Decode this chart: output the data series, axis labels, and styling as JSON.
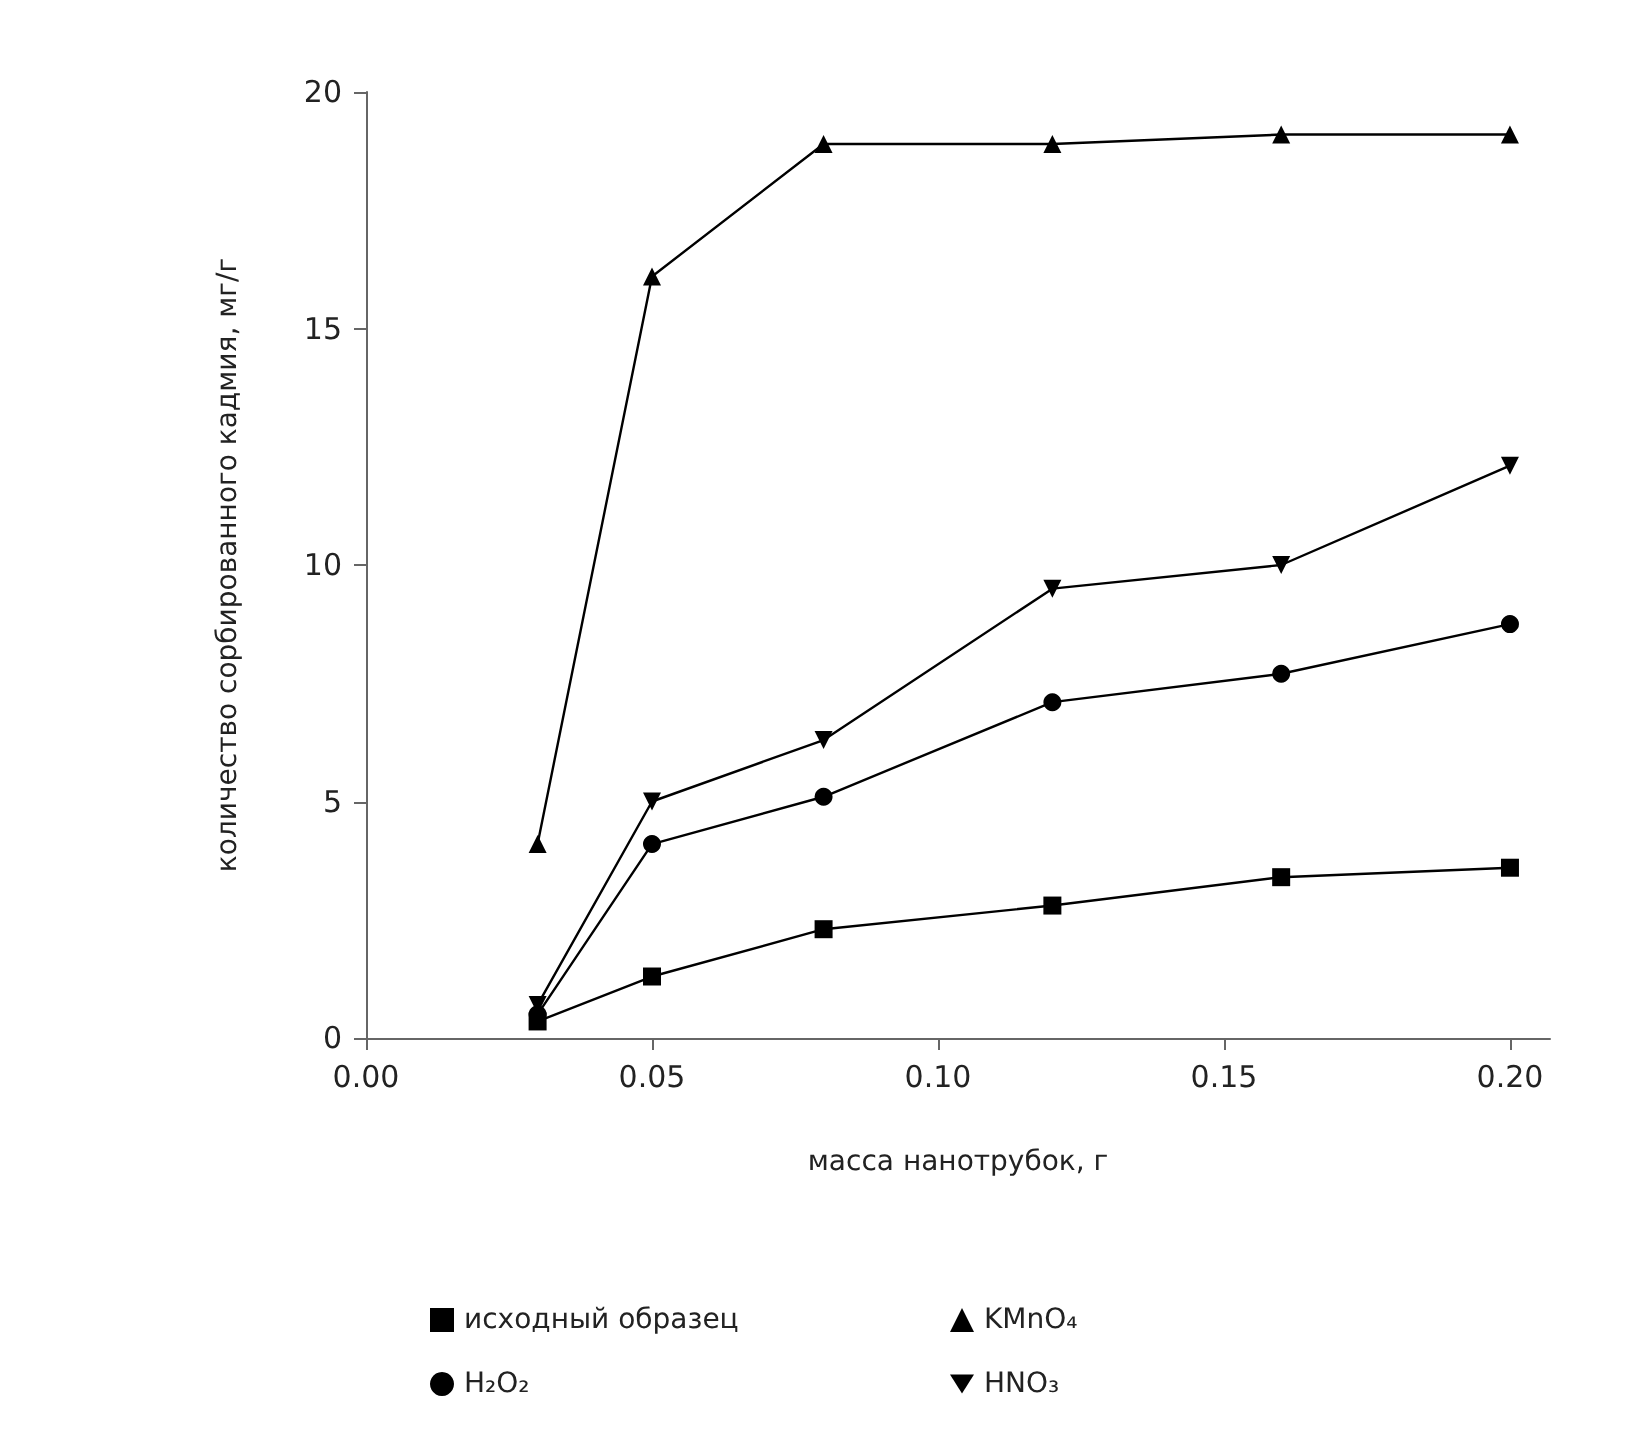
{
  "chart_data": {
    "type": "line",
    "xlabel": "масса нанотрубок, г",
    "ylabel": "количество сорбированного кадмия, мг/г",
    "x": [
      0.03,
      0.05,
      0.08,
      0.12,
      0.16,
      0.2
    ],
    "xlim": [
      0,
      0.207
    ],
    "xticks": [
      {
        "value": 0,
        "label": "0.00"
      },
      {
        "value": 0.05,
        "label": "0.05"
      },
      {
        "value": 0.1,
        "label": "0.10"
      },
      {
        "value": 0.15,
        "label": "0.15"
      },
      {
        "value": 0.2,
        "label": "0.20"
      }
    ],
    "ylim": [
      0,
      20
    ],
    "yticks": [
      0,
      5,
      10,
      15,
      20
    ],
    "grid": false,
    "legend": "bottom",
    "line_style": "solid",
    "series": [
      {
        "name": "исходный образец",
        "color": "#000000",
        "marker": "square",
        "values": [
          0.35,
          1.3,
          2.3,
          2.8,
          3.4,
          3.6
        ]
      },
      {
        "name": "KMnO₄",
        "color": "#000000",
        "marker": "triangle",
        "values": [
          4.1,
          16.1,
          18.9,
          18.9,
          19.1,
          19.1
        ]
      },
      {
        "name": "H₂O₂",
        "color": "#000000",
        "marker": "circle",
        "values": [
          0.5,
          4.1,
          5.1,
          7.1,
          7.7,
          8.75
        ]
      },
      {
        "name": "HNO₃",
        "color": "#000000",
        "marker": "triangle_down",
        "values": [
          0.7,
          5.0,
          6.3,
          9.5,
          10.0,
          12.1
        ]
      }
    ]
  }
}
